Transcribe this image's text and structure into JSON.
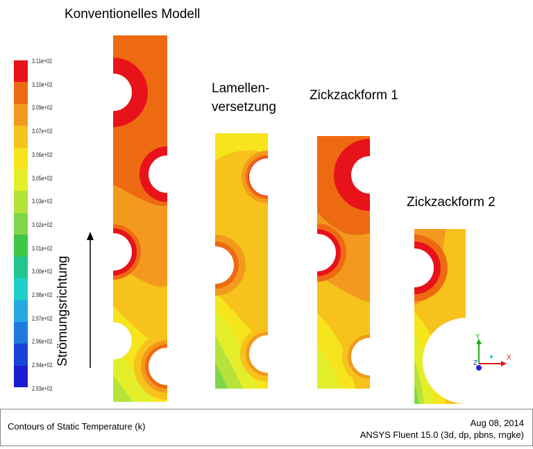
{
  "titles": {
    "conventional": "Konventionelles Modell",
    "fin_offset_line1": "Lamellen-",
    "fin_offset_line2": "versetzung",
    "zigzag1": "Zickzackform 1",
    "zigzag2": "Zickzackform 2"
  },
  "flow_direction_label": "Strömungsrichtung",
  "colorbar": {
    "ticks": [
      "3.11e+02",
      "3.10e+02",
      "3.09e+02",
      "3.07e+02",
      "3.06e+02",
      "3.05e+02",
      "3.03e+02",
      "3.02e+02",
      "3.01e+02",
      "3.00e+02",
      "2.98e+02",
      "2.97e+02",
      "2.96e+02",
      "2.94e+02",
      "2.93e+02"
    ],
    "colors": [
      "#e8121a",
      "#ee6a12",
      "#f39a1e",
      "#f7c21c",
      "#f6e41c",
      "#e4ef2c",
      "#b5e33a",
      "#7fd748",
      "#3fc848",
      "#22c590",
      "#21cfca",
      "#24a9e0",
      "#1f79de",
      "#1b42d6",
      "#1b1bd0"
    ]
  },
  "axes_triad": {
    "x": "X",
    "y": "Y",
    "z": "Z"
  },
  "footer": {
    "title": "Contours of Static Temperature (k)",
    "date": "Aug 08, 2014",
    "version": "ANSYS Fluent 15.0 (3d, dp, pbns, rngke)"
  }
}
